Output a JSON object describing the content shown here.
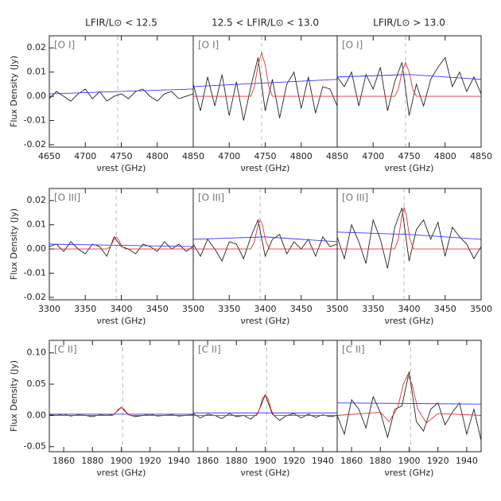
{
  "chart_data": [
    {
      "type": "line",
      "title": "LFIR/L⊙ < 12.5",
      "ylabel": "Flux Density (Jy)",
      "xlabel": "νrest (GHz)",
      "annotation": "[O I]",
      "xlim": [
        4650,
        4850
      ],
      "xticks": [
        4650,
        4700,
        4750,
        4800,
        4850
      ],
      "ylim": [
        -0.021,
        0.025
      ],
      "yticks": [
        -0.02,
        -0.01,
        {
          "value": 0,
          "label": "0.00"
        },
        0.01,
        0.02
      ],
      "vline": 4745,
      "series": [
        {
          "color": "#222222",
          "x": [
            4650,
            4660,
            4670,
            4680,
            4690,
            4700,
            4710,
            4720,
            4730,
            4740,
            4750,
            4760,
            4770,
            4780,
            4790,
            4800,
            4810,
            4820,
            4830,
            4840,
            4850
          ],
          "values": [
            -0.001,
            0.002,
            0.0,
            -0.002,
            0.001,
            0.003,
            -0.001,
            0.002,
            -0.002,
            0.0,
            0.001,
            -0.001,
            0.002,
            0.003,
            0.0,
            -0.002,
            0.001,
            0.002,
            -0.001,
            0.0,
            0.001
          ]
        },
        {
          "color": "#3a3af0",
          "x": [
            4650,
            4850
          ],
          "values": [
            0.001,
            0.003
          ]
        }
      ]
    },
    {
      "type": "line",
      "title": "12.5 < LFIR/L⊙ < 13.0",
      "xlabel": "νrest (GHz)",
      "annotation": "[O I]",
      "xlim": [
        4650,
        4850
      ],
      "xticks": [
        4700,
        4750,
        4800,
        4850
      ],
      "ylim": [
        -0.021,
        0.025
      ],
      "vline": 4745,
      "series": [
        {
          "color": "#222222",
          "x": [
            4650,
            4660,
            4670,
            4680,
            4690,
            4700,
            4710,
            4720,
            4730,
            4740,
            4750,
            4760,
            4770,
            4780,
            4790,
            4800,
            4810,
            4820,
            4830,
            4840,
            4850
          ],
          "values": [
            0.005,
            -0.006,
            0.008,
            -0.004,
            0.009,
            -0.008,
            0.006,
            -0.01,
            0.004,
            0.016,
            -0.006,
            0.007,
            -0.009,
            0.005,
            0.01,
            -0.005,
            0.008,
            -0.007,
            0.004,
            0.003,
            -0.004
          ]
        },
        {
          "color": "#3a3af0",
          "x": [
            4650,
            4850
          ],
          "values": [
            0.004,
            0.007
          ]
        },
        {
          "color": "#e33333",
          "x": [
            4650,
            4730,
            4735,
            4740,
            4745,
            4750,
            4755,
            4760,
            4850
          ],
          "values": [
            0,
            0,
            0.004,
            0.013,
            0.018,
            0.013,
            0.004,
            0,
            0
          ]
        }
      ]
    },
    {
      "type": "line",
      "title": "LFIR/L⊙ > 13.0",
      "xlabel": "νrest (GHz)",
      "annotation": "[O I]",
      "xlim": [
        4650,
        4850
      ],
      "xticks": [
        4700,
        4750,
        4800,
        4850
      ],
      "ylim": [
        -0.021,
        0.025
      ],
      "vline": 4745,
      "series": [
        {
          "color": "#222222",
          "x": [
            4650,
            4660,
            4670,
            4680,
            4690,
            4700,
            4710,
            4720,
            4730,
            4740,
            4750,
            4760,
            4770,
            4780,
            4790,
            4800,
            4810,
            4820,
            4830,
            4840,
            4850
          ],
          "values": [
            0.008,
            0.004,
            0.01,
            -0.004,
            0.009,
            0.003,
            0.012,
            -0.006,
            0.006,
            0.014,
            -0.008,
            0.005,
            -0.004,
            0.007,
            0.012,
            0.016,
            0.004,
            0.01,
            0.002,
            0.008,
            0.001
          ]
        },
        {
          "color": "#3a3af0",
          "x": [
            4650,
            4750,
            4850
          ],
          "values": [
            0.008,
            0.009,
            0.007
          ]
        },
        {
          "color": "#e33333",
          "x": [
            4650,
            4730,
            4735,
            4740,
            4745,
            4750,
            4755,
            4760,
            4850
          ],
          "values": [
            0,
            0,
            0.003,
            0.01,
            0.014,
            0.01,
            0.003,
            0,
            0
          ]
        }
      ]
    },
    {
      "type": "line",
      "ylabel": "Flux Density (Jy)",
      "xlabel": "νrest (GHz)",
      "annotation": "[O III]",
      "xlim": [
        3300,
        3500
      ],
      "xticks": [
        3300,
        3350,
        3400,
        3450,
        3500
      ],
      "ylim": [
        -0.021,
        0.025
      ],
      "yticks": [
        -0.02,
        -0.01,
        {
          "value": 0,
          "label": "0.00"
        },
        0.01,
        0.02
      ],
      "vline": 3393,
      "series": [
        {
          "color": "#222222",
          "x": [
            3300,
            3310,
            3320,
            3330,
            3340,
            3350,
            3360,
            3370,
            3380,
            3390,
            3400,
            3410,
            3420,
            3430,
            3440,
            3450,
            3460,
            3470,
            3480,
            3490,
            3500
          ],
          "values": [
            0.001,
            0.002,
            -0.001,
            0.003,
            0.0,
            -0.002,
            0.002,
            0.001,
            -0.003,
            0.005,
            0.001,
            0.0,
            -0.002,
            0.002,
            0.001,
            -0.001,
            0.003,
            0.0,
            0.002,
            -0.001,
            0.001
          ]
        },
        {
          "color": "#3a3af0",
          "x": [
            3300,
            3500
          ],
          "values": [
            0.002,
            0.001
          ]
        },
        {
          "color": "#e33333",
          "x": [
            3300,
            3380,
            3385,
            3390,
            3393,
            3396,
            3401,
            3406,
            3500
          ],
          "values": [
            0,
            0,
            0.001,
            0.004,
            0.005,
            0.004,
            0.001,
            0,
            0
          ]
        }
      ]
    },
    {
      "type": "line",
      "xlabel": "νrest (GHz)",
      "annotation": "[O III]",
      "xlim": [
        3300,
        3500
      ],
      "xticks": [
        3350,
        3400,
        3450,
        3500
      ],
      "ylim": [
        -0.021,
        0.025
      ],
      "vline": 3393,
      "series": [
        {
          "color": "#222222",
          "x": [
            3300,
            3310,
            3320,
            3330,
            3340,
            3350,
            3360,
            3370,
            3380,
            3390,
            3400,
            3410,
            3420,
            3430,
            3440,
            3450,
            3460,
            3470,
            3480,
            3490,
            3500
          ],
          "values": [
            0.002,
            -0.003,
            0.004,
            0.0,
            -0.005,
            0.003,
            0.002,
            -0.004,
            0.005,
            0.012,
            -0.003,
            0.004,
            0.006,
            -0.002,
            0.003,
            0.0,
            0.004,
            -0.003,
            0.005,
            0.001,
            0.002
          ]
        },
        {
          "color": "#3a3af0",
          "x": [
            3300,
            3400,
            3500
          ],
          "values": [
            0.004,
            0.005,
            0.003
          ]
        },
        {
          "color": "#e33333",
          "x": [
            3300,
            3380,
            3385,
            3390,
            3393,
            3396,
            3401,
            3406,
            3500
          ],
          "values": [
            0,
            0,
            0.003,
            0.01,
            0.012,
            0.01,
            0.003,
            0,
            0
          ]
        }
      ]
    },
    {
      "type": "line",
      "xlabel": "νrest (GHz)",
      "annotation": "[O III]",
      "xlim": [
        3300,
        3500
      ],
      "xticks": [
        3350,
        3400,
        3450,
        3500
      ],
      "ylim": [
        -0.021,
        0.025
      ],
      "vline": 3393,
      "series": [
        {
          "color": "#222222",
          "x": [
            3300,
            3310,
            3320,
            3330,
            3340,
            3350,
            3360,
            3370,
            3380,
            3390,
            3400,
            3410,
            3420,
            3430,
            3440,
            3450,
            3460,
            3470,
            3480,
            3490,
            3500
          ],
          "values": [
            0.005,
            -0.004,
            0.01,
            0.003,
            -0.006,
            0.012,
            0.004,
            -0.008,
            0.009,
            0.017,
            -0.005,
            0.008,
            0.012,
            0.004,
            0.011,
            -0.003,
            0.009,
            0.005,
            0.002,
            -0.004,
            0.001
          ]
        },
        {
          "color": "#3a3af0",
          "x": [
            3300,
            3400,
            3500
          ],
          "values": [
            0.007,
            0.006,
            0.004
          ]
        },
        {
          "color": "#e33333",
          "x": [
            3300,
            3380,
            3385,
            3390,
            3393,
            3396,
            3401,
            3406,
            3500
          ],
          "values": [
            0,
            0,
            0.004,
            0.014,
            0.017,
            0.014,
            0.004,
            0,
            0
          ]
        }
      ]
    },
    {
      "type": "line",
      "ylabel": "Flux Density (Jy)",
      "xlabel": "νrest (GHz)",
      "annotation": "[C II]",
      "xlim": [
        1850,
        1950
      ],
      "xticks": [
        1860,
        1880,
        1900,
        1920,
        1940
      ],
      "ylim": [
        -0.058,
        0.12
      ],
      "yticks": [
        -0.05,
        {
          "value": 0,
          "label": "0.00"
        },
        0.05,
        {
          "value": 0.1,
          "label": "0.10"
        }
      ],
      "vline": 1901,
      "series": [
        {
          "color": "#222222",
          "x": [
            1850,
            1855,
            1860,
            1865,
            1870,
            1875,
            1880,
            1885,
            1890,
            1895,
            1900,
            1905,
            1910,
            1915,
            1920,
            1925,
            1930,
            1935,
            1940,
            1945,
            1950
          ],
          "values": [
            0.001,
            0.0,
            0.002,
            -0.001,
            0.001,
            0.0,
            -0.002,
            0.001,
            0.0,
            0.002,
            0.013,
            0.001,
            -0.002,
            0.0,
            0.002,
            -0.001,
            0.0,
            0.001,
            -0.001,
            0.0,
            0.001
          ]
        },
        {
          "color": "#3a3af0",
          "x": [
            1850,
            1950
          ],
          "values": [
            0.002,
            0.002
          ]
        },
        {
          "color": "#e33333",
          "x": [
            1850,
            1894,
            1896,
            1898,
            1900,
            1902,
            1904,
            1906,
            1950
          ],
          "values": [
            0,
            0,
            0.004,
            0.01,
            0.012,
            0.01,
            0.004,
            0,
            0
          ]
        }
      ]
    },
    {
      "type": "line",
      "xlabel": "νrest (GHz)",
      "annotation": "[C II]",
      "xlim": [
        1850,
        1950
      ],
      "xticks": [
        1860,
        1880,
        1900,
        1920,
        1940
      ],
      "ylim": [
        -0.058,
        0.12
      ],
      "vline": 1901,
      "series": [
        {
          "color": "#222222",
          "x": [
            1850,
            1855,
            1860,
            1865,
            1870,
            1875,
            1880,
            1885,
            1890,
            1895,
            1900,
            1905,
            1910,
            1915,
            1920,
            1925,
            1930,
            1935,
            1940,
            1945,
            1950
          ],
          "values": [
            0.003,
            -0.004,
            0.002,
            0.0,
            -0.005,
            0.003,
            -0.002,
            0.0,
            -0.006,
            0.004,
            0.033,
            0.002,
            -0.008,
            0.0,
            0.003,
            -0.004,
            0.002,
            -0.003,
            0.001,
            -0.002,
            0.0
          ]
        },
        {
          "color": "#3a3af0",
          "x": [
            1850,
            1950
          ],
          "values": [
            0.004,
            0.004
          ]
        },
        {
          "color": "#e33333",
          "x": [
            1850,
            1894,
            1896,
            1898,
            1900,
            1902,
            1904,
            1906,
            1950
          ],
          "values": [
            0,
            0,
            0.01,
            0.027,
            0.033,
            0.027,
            0.01,
            0,
            0
          ]
        }
      ]
    },
    {
      "type": "line",
      "xlabel": "νrest (GHz)",
      "annotation": "[C II]",
      "xlim": [
        1850,
        1950
      ],
      "xticks": [
        1860,
        1880,
        1900,
        1920,
        1940
      ],
      "ylim": [
        -0.058,
        0.12
      ],
      "vline": 1901,
      "series": [
        {
          "color": "#222222",
          "x": [
            1850,
            1855,
            1860,
            1865,
            1870,
            1875,
            1880,
            1885,
            1890,
            1895,
            1900,
            1905,
            1910,
            1915,
            1920,
            1925,
            1930,
            1935,
            1940,
            1945,
            1950
          ],
          "values": [
            0.0,
            -0.03,
            0.025,
            0.01,
            -0.02,
            0.03,
            0.005,
            -0.035,
            0.01,
            0.015,
            0.07,
            -0.01,
            -0.025,
            0.01,
            0.02,
            -0.015,
            0.005,
            0.02,
            -0.03,
            0.01,
            -0.04
          ]
        },
        {
          "color": "#3a3af0",
          "x": [
            1850,
            1950
          ],
          "values": [
            0.02,
            0.018
          ]
        },
        {
          "color": "#e33333",
          "x": [
            1850,
            1880,
            1886,
            1892,
            1896,
            1899,
            1902,
            1906,
            1912,
            1920,
            1950
          ],
          "values": [
            0,
            0.005,
            -0.01,
            0.012,
            0.05,
            0.065,
            0.05,
            0.01,
            -0.012,
            0.003,
            0
          ]
        }
      ]
    }
  ]
}
